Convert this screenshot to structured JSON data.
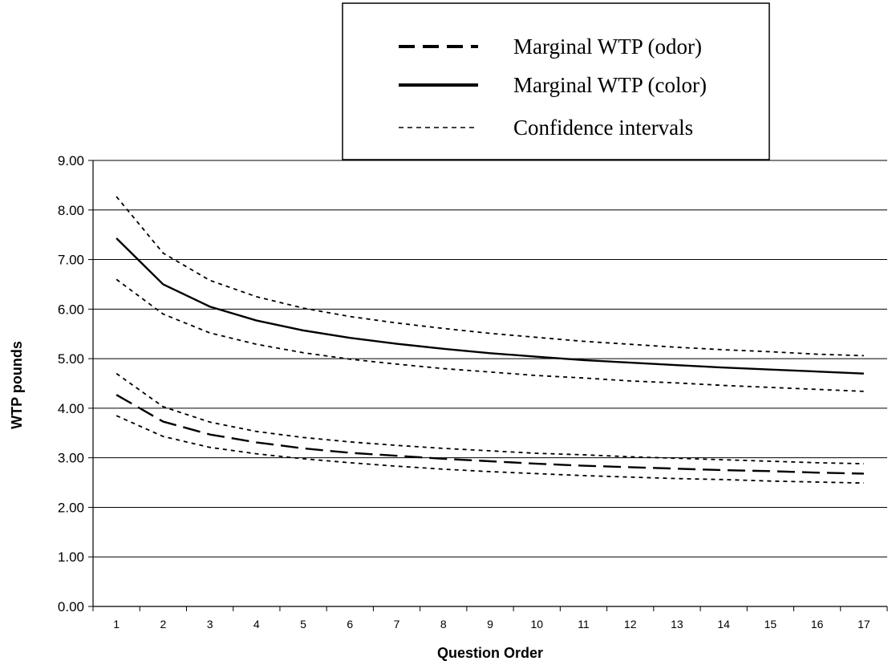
{
  "chart_data": {
    "type": "line",
    "xlabel": "Question Order",
    "ylabel": "WTP pounds",
    "x": [
      1,
      2,
      3,
      4,
      5,
      6,
      7,
      8,
      9,
      10,
      11,
      12,
      13,
      14,
      15,
      16,
      17
    ],
    "ylim": [
      0,
      9
    ],
    "y_ticks": [
      "0.00",
      "1.00",
      "2.00",
      "3.00",
      "4.00",
      "5.00",
      "6.00",
      "7.00",
      "8.00",
      "9.00"
    ],
    "grid": true,
    "legend_position": "top-right",
    "legend": [
      {
        "label": "Marginal WTP (odor)",
        "style": "dashed-bold"
      },
      {
        "label": "Marginal WTP (color)",
        "style": "solid"
      },
      {
        "label": "Confidence intervals",
        "style": "dotted"
      }
    ],
    "series": [
      {
        "name": "Marginal WTP (color)",
        "style": "solid",
        "values": [
          7.43,
          6.5,
          6.05,
          5.77,
          5.57,
          5.42,
          5.3,
          5.2,
          5.11,
          5.04,
          4.97,
          4.92,
          4.87,
          4.82,
          4.78,
          4.74,
          4.7
        ]
      },
      {
        "name": "Confidence intervals",
        "style": "dotted",
        "values": [
          8.27,
          7.13,
          6.58,
          6.25,
          6.02,
          5.85,
          5.72,
          5.61,
          5.51,
          5.43,
          5.35,
          5.29,
          5.23,
          5.18,
          5.14,
          5.09,
          5.06
        ]
      },
      {
        "name": "Confidence intervals",
        "style": "dotted",
        "values": [
          6.6,
          5.9,
          5.52,
          5.29,
          5.12,
          4.99,
          4.89,
          4.8,
          4.73,
          4.66,
          4.61,
          4.55,
          4.51,
          4.46,
          4.42,
          4.38,
          4.34
        ]
      },
      {
        "name": "Marginal WTP (odor)",
        "style": "dashed-bold",
        "values": [
          4.27,
          3.73,
          3.47,
          3.31,
          3.19,
          3.1,
          3.04,
          2.98,
          2.93,
          2.88,
          2.84,
          2.81,
          2.78,
          2.75,
          2.73,
          2.7,
          2.68
        ]
      },
      {
        "name": "Confidence intervals",
        "style": "dotted",
        "values": [
          4.7,
          4.03,
          3.72,
          3.53,
          3.41,
          3.32,
          3.25,
          3.19,
          3.14,
          3.09,
          3.06,
          3.02,
          2.99,
          2.96,
          2.93,
          2.9,
          2.88
        ]
      },
      {
        "name": "Confidence intervals",
        "style": "dotted",
        "values": [
          3.85,
          3.43,
          3.21,
          3.08,
          2.98,
          2.9,
          2.83,
          2.77,
          2.72,
          2.68,
          2.64,
          2.61,
          2.58,
          2.56,
          2.53,
          2.51,
          2.49
        ]
      }
    ]
  }
}
